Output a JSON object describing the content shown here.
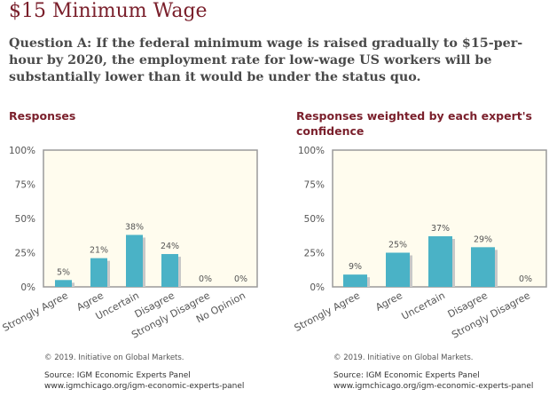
{
  "page": {
    "title": "$15 Minimum Wage",
    "question": "Question A: If the federal minimum wage is raised gradually to $15-per-hour by 2020, the employment rate for low-wage US workers will be substantially lower than it would be under the status quo."
  },
  "footer": {
    "copyright": "© 2019. Initiative on Global Markets.",
    "source": "Source: IGM Economic Experts Panel www.igmchicago.org/igm-economic-experts-panel"
  },
  "colors": {
    "bar": "#4ab2c6",
    "bar_shadow": "#c8c8c8",
    "title": "#7a1f2b",
    "plot_border": "#9a9a9a",
    "plot_bg": "#fffcee"
  },
  "chart_data": [
    {
      "type": "bar",
      "title": "Responses",
      "categories": [
        "Strongly Agree",
        "Agree",
        "Uncertain",
        "Disagree",
        "Strongly Disagree",
        "No Opinion"
      ],
      "values": [
        5,
        21,
        38,
        24,
        0,
        0
      ],
      "value_labels": [
        "5%",
        "21%",
        "38%",
        "24%",
        "0%",
        "0%"
      ],
      "yticks": [
        "0%",
        "25%",
        "50%",
        "75%",
        "100%"
      ],
      "ylim": [
        0,
        100
      ],
      "grid": false
    },
    {
      "type": "bar",
      "title": "Responses weighted by each expert's confidence",
      "categories": [
        "Strongly Agree",
        "Agree",
        "Uncertain",
        "Disagree",
        "Strongly Disagree"
      ],
      "values": [
        9,
        25,
        37,
        29,
        0
      ],
      "value_labels": [
        "9%",
        "25%",
        "37%",
        "29%",
        "0%"
      ],
      "yticks": [
        "0%",
        "25%",
        "50%",
        "75%",
        "100%"
      ],
      "ylim": [
        0,
        100
      ],
      "grid": false
    }
  ]
}
